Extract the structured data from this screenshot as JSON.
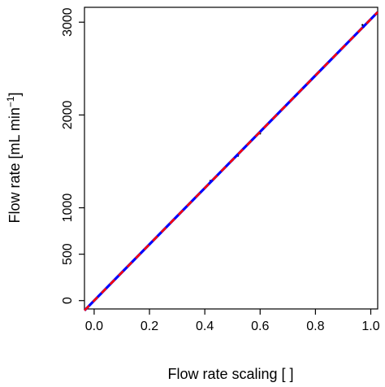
{
  "chart_data": {
    "type": "scatter",
    "xlabel": "Flow rate scaling [ ]",
    "ylabel_main": "Flow rate [mL min",
    "ylabel_sup": "−1",
    "ylabel_close": "]",
    "xlim": [
      -0.035,
      1.025
    ],
    "ylim": [
      -90,
      3160
    ],
    "x_ticks": [
      {
        "value": 0.0,
        "label": "0.0"
      },
      {
        "value": 0.2,
        "label": "0.2"
      },
      {
        "value": 0.4,
        "label": "0.4"
      },
      {
        "value": 0.6,
        "label": "0.6"
      },
      {
        "value": 0.8,
        "label": "0.8"
      },
      {
        "value": 1.0,
        "label": "1.0"
      }
    ],
    "y_ticks": [
      {
        "value": 0,
        "label": "0"
      },
      {
        "value": 500,
        "label": "500"
      },
      {
        "value": 1000,
        "label": "1000"
      },
      {
        "value": 2000,
        "label": "2000"
      },
      {
        "value": 3000,
        "label": "3000"
      }
    ],
    "series": [
      {
        "color": "#000000",
        "style": "points",
        "x": [
          0.0,
          0.18,
          0.42,
          0.5,
          0.52,
          0.6,
          0.62,
          0.97,
          0.975
        ],
        "y": [
          0,
          550,
          1290,
          1510,
          1560,
          1800,
          1880,
          2970,
          2950
        ]
      },
      {
        "color": "#0000ff",
        "style": "solid-line",
        "x": [
          -0.035,
          1.025
        ],
        "y": [
          -106,
          3108
        ]
      },
      {
        "color": "#ff0000",
        "style": "dashed-line",
        "x": [
          -0.035,
          1.025
        ],
        "y": [
          -106,
          3108
        ]
      }
    ]
  }
}
